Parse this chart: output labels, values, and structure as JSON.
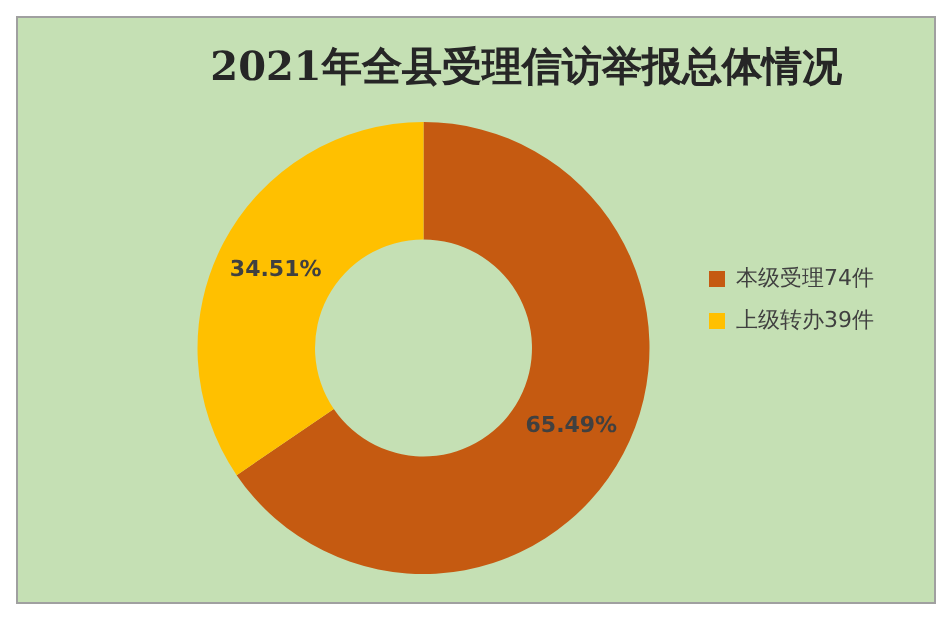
{
  "chart_data": {
    "type": "donut",
    "title": "2021年全县受理信访举报总体情况",
    "categories": [
      "本级受理74件",
      "上级转办39件"
    ],
    "values": [
      65.49,
      34.51
    ],
    "colors": [
      "#c55a11",
      "#ffc000"
    ],
    "value_labels": [
      "65.49%",
      "34.51%"
    ],
    "legend": "right"
  }
}
